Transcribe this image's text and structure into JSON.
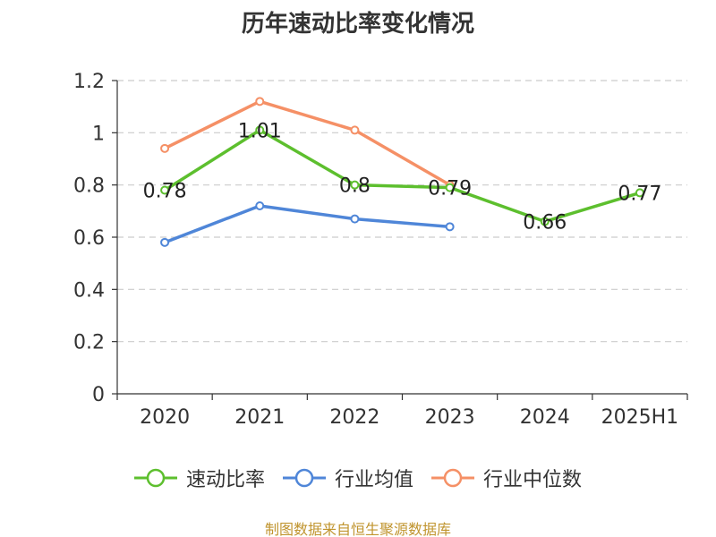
{
  "chart_data": {
    "type": "line",
    "title": "历年速动比率变化情况",
    "categories": [
      "2020",
      "2021",
      "2022",
      "2023",
      "2024",
      "2025H1"
    ],
    "ylim": [
      0,
      1.2
    ],
    "yticks": [
      "0",
      "0.2",
      "0.4",
      "0.6",
      "0.8",
      "1",
      "1.2"
    ],
    "grid": true,
    "legend_position": "bottom",
    "series": [
      {
        "name": "速动比率",
        "color": "#5dbf2e",
        "values": [
          0.78,
          1.01,
          0.8,
          0.79,
          0.66,
          0.77
        ],
        "labels": [
          "0.78",
          "1.01",
          "0.8",
          "0.79",
          "0.66",
          "0.77"
        ]
      },
      {
        "name": "行业均值",
        "color": "#4f86d8",
        "values": [
          0.58,
          0.72,
          0.67,
          0.64,
          null,
          null
        ]
      },
      {
        "name": "行业中位数",
        "color": "#f59066",
        "values": [
          0.94,
          1.12,
          1.01,
          0.8,
          null,
          null
        ]
      }
    ]
  },
  "source": "制图数据来自恒生聚源数据库"
}
